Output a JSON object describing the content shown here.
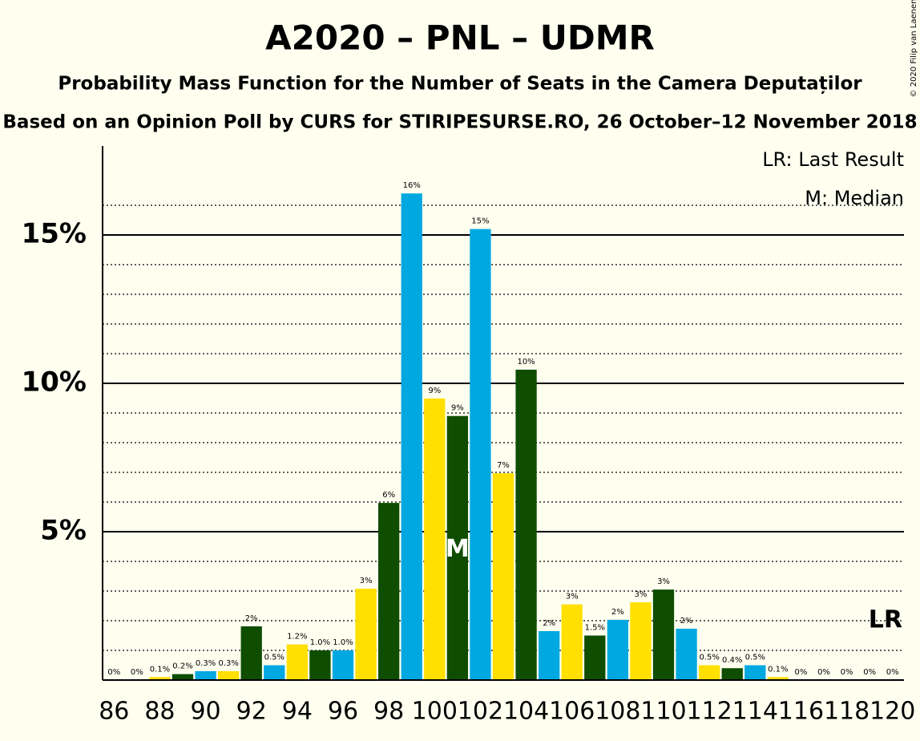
{
  "chart_data": {
    "type": "bar",
    "title": "A2020 – PNL – UDMR",
    "subtitle": "Probability Mass Function for the Number of Seats in the Camera Deputaților",
    "subtitle2": "Based on an Opinion Poll by CURS for STIRIPESURSE.RO, 26 October–12 November 2018",
    "copyright": "© 2020 Filip van Laenen",
    "legend": [
      "LR: Last Result",
      "M: Median"
    ],
    "categories": [
      "86",
      null,
      "88",
      null,
      "90",
      null,
      "92",
      null,
      "94",
      null,
      "96",
      null,
      "98",
      null,
      "100",
      null,
      "102",
      null,
      "104",
      null,
      "106",
      null,
      "108",
      null,
      "110",
      null,
      "112",
      null,
      "114",
      null,
      "116",
      null,
      "118",
      null,
      "120"
    ],
    "values": [
      0,
      0,
      0.1,
      0.2,
      0.3,
      0.3,
      1.81,
      0.5,
      1.2,
      1.0,
      1.0,
      3.08,
      5.97,
      16.4,
      9.49,
      8.9,
      15.2,
      6.97,
      10.46,
      1.65,
      2.55,
      1.5,
      2.03,
      2.62,
      3.05,
      1.73,
      0.5,
      0.4,
      0.5,
      0.1,
      0,
      0,
      0,
      0,
      0
    ],
    "value_labels": [
      "0%",
      "0%",
      "0.1%",
      "0.2%",
      "0.3%",
      "0.3%",
      "2%",
      "0.5%",
      "1.2%",
      "1.0%",
      "1.0%",
      "3%",
      "6%",
      "16%",
      "9%",
      "9%",
      "15%",
      "7%",
      "10%",
      "2%",
      "3%",
      "1.5%",
      "2%",
      "3%",
      "3%",
      "2%",
      "0.5%",
      "0.4%",
      "0.5%",
      "0.1%",
      "0%",
      "0%",
      "0%",
      "0%",
      "0%"
    ],
    "colors": [
      "#0f4d00",
      "#00a8e1",
      "#ffe000",
      "#0f4d00",
      "#00a8e1",
      "#ffe000",
      "#0f4d00",
      "#00a8e1",
      "#ffe000",
      "#0f4d00",
      "#00a8e1",
      "#ffe000",
      "#0f4d00",
      "#00a8e1",
      "#ffe000",
      "#0f4d00",
      "#00a8e1",
      "#ffe000",
      "#0f4d00",
      "#00a8e1",
      "#ffe000",
      "#0f4d00",
      "#00a8e1",
      "#ffe000",
      "#0f4d00",
      "#00a8e1",
      "#ffe000",
      "#0f4d00",
      "#00a8e1",
      "#ffe000",
      "#0f4d00",
      "#00a8e1",
      "#ffe000",
      "#0f4d00",
      "#00a8e1"
    ],
    "median_label": "M",
    "median_bar": 15,
    "last_result_label": "LR",
    "last_result_bar": 34,
    "ylim": [
      0,
      18
    ],
    "yticks": [
      {
        "value": 5,
        "label": "5%"
      },
      {
        "value": 10,
        "label": "10%"
      },
      {
        "value": 15,
        "label": "15%"
      }
    ],
    "minor_yticks": [
      1,
      2,
      3,
      4,
      6,
      7,
      8,
      9,
      11,
      12,
      13,
      14,
      16
    ]
  }
}
